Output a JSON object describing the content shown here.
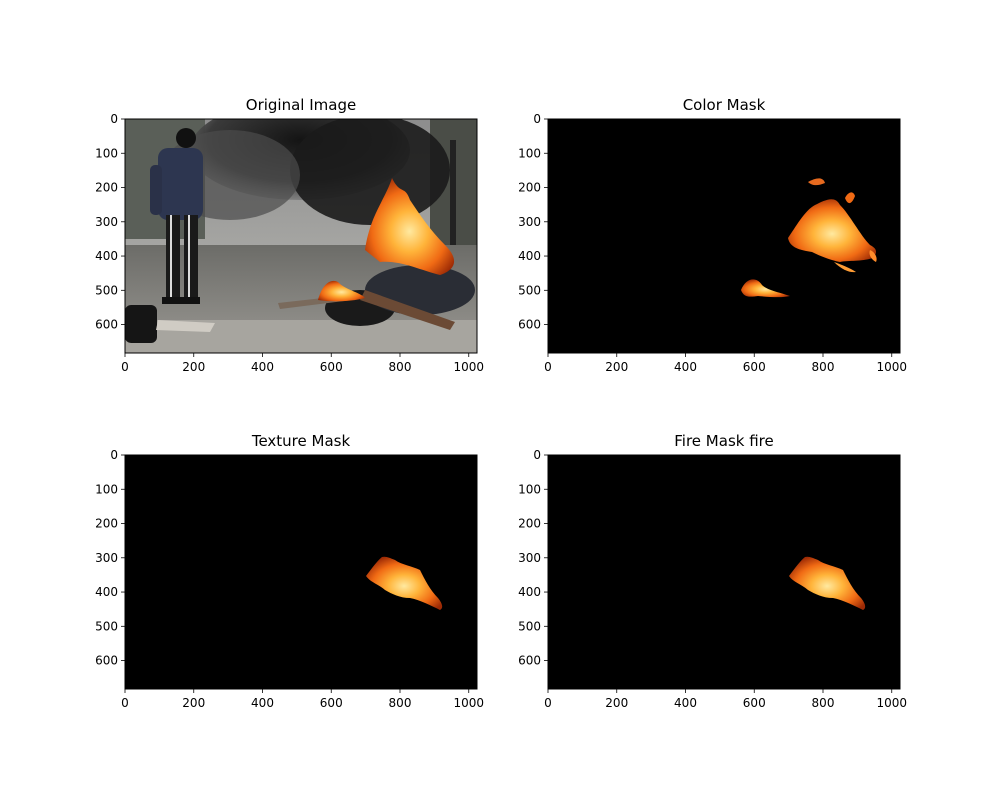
{
  "figure": {
    "panels": [
      {
        "id": "original",
        "title": "Original Image",
        "kind": "photo"
      },
      {
        "id": "color_mask",
        "title": "Color Mask",
        "kind": "mask_color"
      },
      {
        "id": "texture_mask",
        "title": "Texture Mask",
        "kind": "mask_fire"
      },
      {
        "id": "fire_mask",
        "title": "Fire Mask fire",
        "kind": "mask_fire"
      }
    ],
    "axes": {
      "x_ticks": [
        "0",
        "200",
        "400",
        "600",
        "800",
        "1000"
      ],
      "x_tick_values": [
        0,
        200,
        400,
        600,
        800,
        1000
      ],
      "y_ticks": [
        "0",
        "100",
        "200",
        "300",
        "400",
        "500",
        "600"
      ],
      "y_tick_values": [
        0,
        100,
        200,
        300,
        400,
        500,
        600
      ],
      "x_range": [
        0,
        1024
      ],
      "y_range": [
        683,
        0
      ]
    }
  }
}
